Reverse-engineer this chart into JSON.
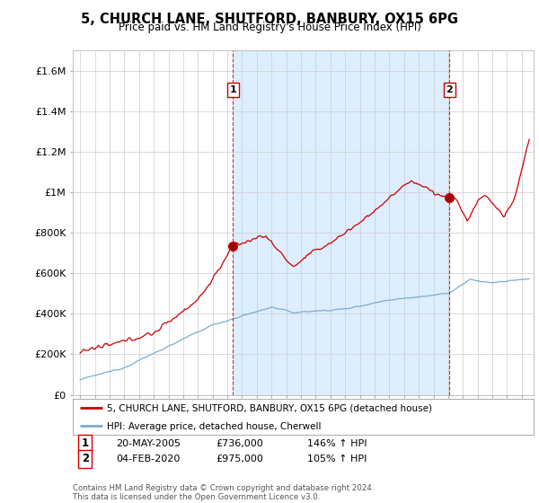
{
  "title": "5, CHURCH LANE, SHUTFORD, BANBURY, OX15 6PG",
  "subtitle": "Price paid vs. HM Land Registry's House Price Index (HPI)",
  "legend_line1": "5, CHURCH LANE, SHUTFORD, BANBURY, OX15 6PG (detached house)",
  "legend_line2": "HPI: Average price, detached house, Cherwell",
  "annotation1_label": "1",
  "annotation1_date": "20-MAY-2005",
  "annotation1_price": "£736,000",
  "annotation1_hpi": "146% ↑ HPI",
  "annotation2_label": "2",
  "annotation2_date": "04-FEB-2020",
  "annotation2_price": "£975,000",
  "annotation2_hpi": "105% ↑ HPI",
  "footer": "Contains HM Land Registry data © Crown copyright and database right 2024.\nThis data is licensed under the Open Government Licence v3.0.",
  "red_color": "#cc0000",
  "blue_color": "#7aadcf",
  "shade_color": "#ddeeff",
  "background_color": "#ffffff",
  "grid_color": "#cccccc",
  "ylim": [
    0,
    1700000
  ],
  "yticks": [
    0,
    200000,
    400000,
    600000,
    800000,
    1000000,
    1200000,
    1400000,
    1600000
  ],
  "ytick_labels": [
    "£0",
    "£200K",
    "£400K",
    "£600K",
    "£800K",
    "£1M",
    "£1.2M",
    "£1.4M",
    "£1.6M"
  ],
  "marker1_x": 2005.38,
  "marker1_y": 736000,
  "marker2_x": 2020.08,
  "marker2_y": 975000,
  "xmin": 1994.5,
  "xmax": 2025.8
}
